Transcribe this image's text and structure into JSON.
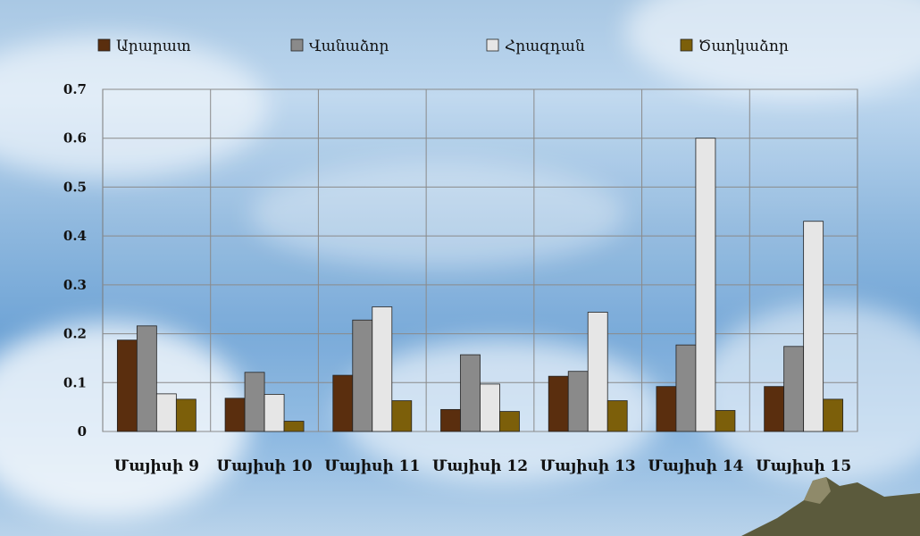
{
  "chart_data": {
    "type": "bar",
    "categories": [
      "Մայիսի 9",
      "Մայիսի 10",
      "Մայիսի 11",
      "Մայիսի 12",
      "Մայիսի 13",
      "Մայիսի 14",
      "Մայիսի 15"
    ],
    "series": [
      {
        "name": "Արարատ",
        "color": "#5a2e0e",
        "values": [
          0.187,
          0.068,
          0.115,
          0.045,
          0.113,
          0.092,
          0.092
        ]
      },
      {
        "name": "Վանաձոր",
        "color": "#8a8a8a",
        "values": [
          0.216,
          0.121,
          0.228,
          0.157,
          0.123,
          0.177,
          0.174
        ]
      },
      {
        "name": "Հրազդան",
        "color": "#e6e6e6",
        "values": [
          0.077,
          0.076,
          0.255,
          0.097,
          0.244,
          0.6,
          0.43
        ]
      },
      {
        "name": "Ծաղկաձոր",
        "color": "#7c5f0a",
        "values": [
          0.066,
          0.021,
          0.063,
          0.041,
          0.063,
          0.043,
          0.066
        ]
      }
    ],
    "yticks": [
      "0",
      "0.1",
      "0.2",
      "0.3",
      "0.4",
      "0.5",
      "0.6",
      "0.7"
    ],
    "ylim": [
      0,
      0.7
    ],
    "grid": true,
    "legend_position": "top"
  }
}
